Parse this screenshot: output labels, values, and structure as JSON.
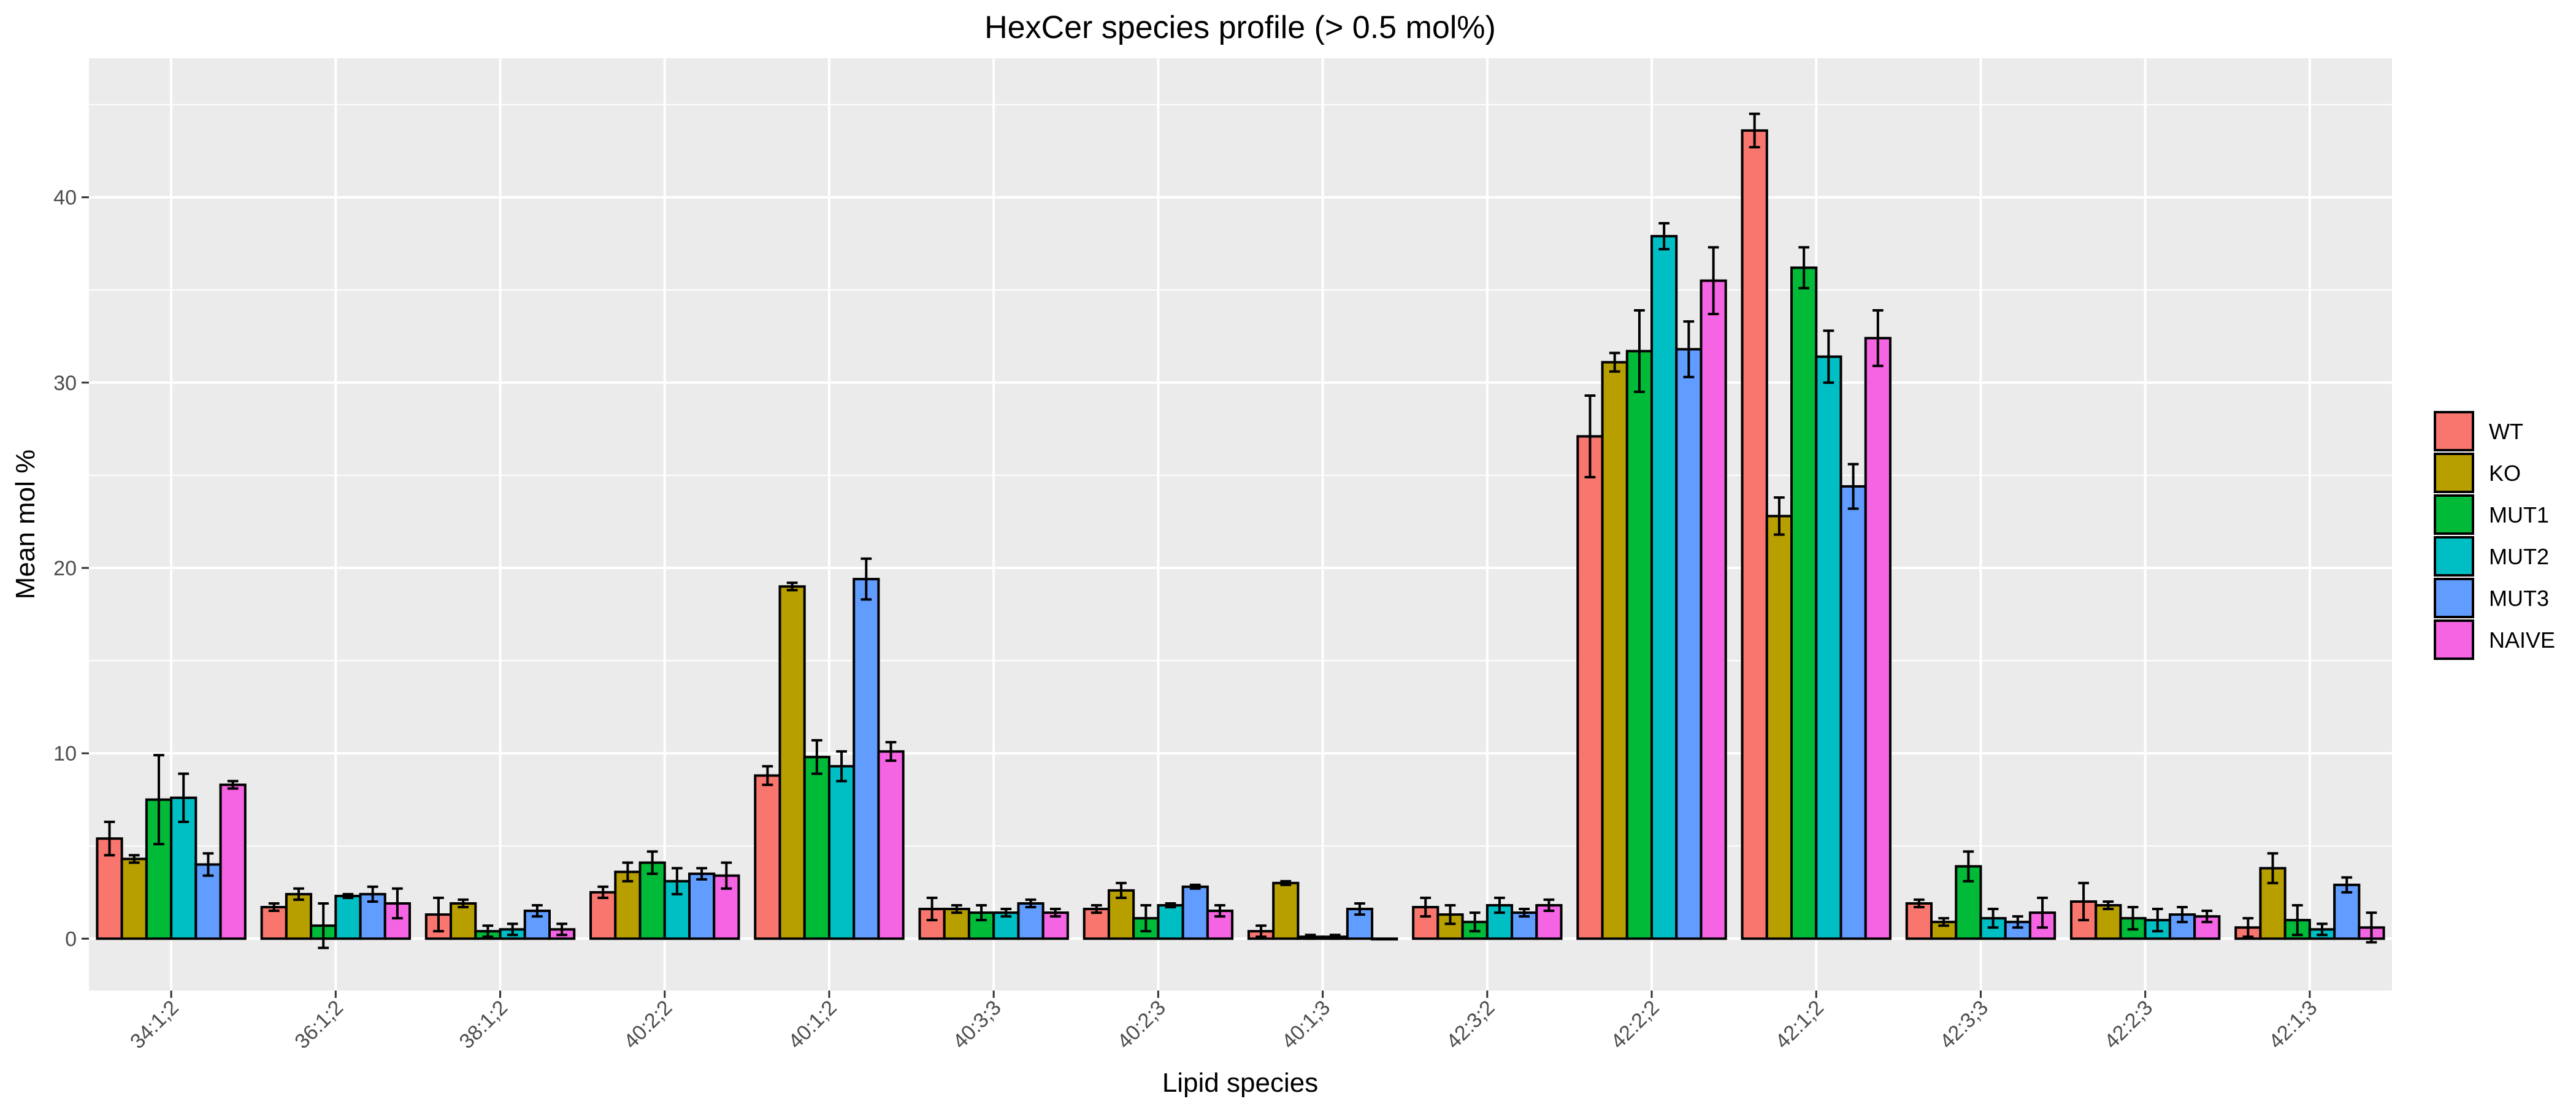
{
  "chart_data": {
    "type": "bar",
    "title": "HexCer species profile (> 0.5 mol%)",
    "xlabel": "Lipid species",
    "ylabel": "Mean mol %",
    "ylim": [
      -2.8,
      47.5
    ],
    "yticks": [
      0,
      10,
      20,
      30,
      40
    ],
    "grid": true,
    "legend_position": "right",
    "categories": [
      "34:1;2",
      "36:1;2",
      "38:1;2",
      "40:2;2",
      "40:1;2",
      "40:3;3",
      "40:2;3",
      "40:1;3",
      "42:3;2",
      "42:2;2",
      "42:1;2",
      "42:3;3",
      "42:2;3",
      "42:1;3"
    ],
    "series": [
      {
        "name": "WT",
        "color": "#F8766D",
        "values": [
          5.4,
          1.7,
          1.3,
          2.5,
          8.8,
          1.6,
          1.6,
          0.4,
          1.7,
          27.1,
          43.6,
          1.9,
          2.0,
          0.6
        ],
        "errors": [
          0.9,
          0.2,
          0.9,
          0.3,
          0.5,
          0.6,
          0.2,
          0.3,
          0.5,
          2.2,
          0.9,
          0.2,
          1.0,
          0.5
        ]
      },
      {
        "name": "KO",
        "color": "#B79F00",
        "values": [
          4.3,
          2.4,
          1.9,
          3.6,
          19.0,
          1.6,
          2.6,
          3.0,
          1.3,
          31.1,
          22.8,
          0.9,
          1.8,
          3.8
        ],
        "errors": [
          0.2,
          0.3,
          0.2,
          0.5,
          0.2,
          0.2,
          0.4,
          0.1,
          0.5,
          0.5,
          1.0,
          0.2,
          0.2,
          0.8
        ]
      },
      {
        "name": "MUT1",
        "color": "#00BA38",
        "values": [
          7.5,
          0.7,
          0.4,
          4.1,
          9.8,
          1.4,
          1.1,
          0.1,
          0.9,
          31.7,
          36.2,
          3.9,
          1.1,
          1.0
        ],
        "errors": [
          2.4,
          1.2,
          0.3,
          0.6,
          0.9,
          0.4,
          0.7,
          0.1,
          0.5,
          2.2,
          1.1,
          0.8,
          0.6,
          0.8
        ]
      },
      {
        "name": "MUT2",
        "color": "#00BFC4",
        "values": [
          7.6,
          2.3,
          0.5,
          3.1,
          9.3,
          1.4,
          1.8,
          0.1,
          1.8,
          37.9,
          31.4,
          1.1,
          1.0,
          0.5
        ],
        "errors": [
          1.3,
          0.1,
          0.3,
          0.7,
          0.8,
          0.2,
          0.1,
          0.1,
          0.4,
          0.7,
          1.4,
          0.5,
          0.6,
          0.3
        ]
      },
      {
        "name": "MUT3",
        "color": "#619CFF",
        "values": [
          4.0,
          2.4,
          1.5,
          3.5,
          19.4,
          1.9,
          2.8,
          1.6,
          1.4,
          31.8,
          24.4,
          0.9,
          1.3,
          2.9
        ],
        "errors": [
          0.6,
          0.4,
          0.3,
          0.3,
          1.1,
          0.2,
          0.1,
          0.3,
          0.2,
          1.5,
          1.2,
          0.3,
          0.4,
          0.4
        ]
      },
      {
        "name": "NAIVE",
        "color": "#F564E3",
        "values": [
          8.3,
          1.9,
          0.5,
          3.4,
          10.1,
          1.4,
          1.5,
          0.0,
          1.8,
          35.5,
          32.4,
          1.4,
          1.2,
          0.6
        ],
        "errors": [
          0.2,
          0.8,
          0.3,
          0.7,
          0.5,
          0.2,
          0.3,
          0.0,
          0.3,
          1.8,
          1.5,
          0.8,
          0.3,
          0.8
        ]
      }
    ]
  }
}
